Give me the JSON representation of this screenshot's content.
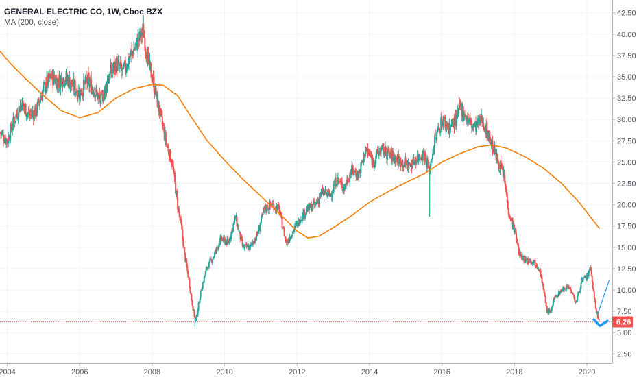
{
  "header": {
    "title": "GENERAL ELECTRIC CO, 1W, Cboe BZX",
    "indicator": "MA (200, close)"
  },
  "colors": {
    "up": "#26a69a",
    "down": "#ef5350",
    "ma": "#f57c00",
    "price_line": "#ef5350",
    "arrow": "#2196f3",
    "grid": "#f0f3fa"
  },
  "chart_data": {
    "type": "candlestick",
    "title": "GENERAL ELECTRIC CO, 1W, Cboe BZX",
    "interval": "1W",
    "xlim": [
      2003.8,
      2020.7
    ],
    "ylim": [
      1.4,
      44.0
    ],
    "x_ticks": [
      2004,
      2006,
      2008,
      2010,
      2012,
      2014,
      2016,
      2018,
      2020
    ],
    "x_tick_labels": [
      "2004",
      "2006",
      "2008",
      "2010",
      "2012",
      "2014",
      "2016",
      "2018",
      "2020"
    ],
    "y_ticks": [
      2.5,
      5.0,
      7.5,
      10.0,
      12.5,
      15.0,
      17.5,
      20.0,
      22.5,
      25.0,
      27.5,
      30.0,
      32.5,
      35.0,
      37.5,
      40.0,
      42.5
    ],
    "y_tick_labels": [
      "2.50",
      "5.00",
      "7.50",
      "10.00",
      "12.50",
      "15.00",
      "17.50",
      "20.00",
      "22.50",
      "25.00",
      "27.50",
      "30.00",
      "32.50",
      "35.00",
      "37.50",
      "40.00",
      "42.50"
    ],
    "last_price": 6.26,
    "last_price_label": "6.26",
    "price_path": [
      [
        2003.8,
        28.5
      ],
      [
        2004.0,
        27.5
      ],
      [
        2004.2,
        30.0
      ],
      [
        2004.4,
        32.0
      ],
      [
        2004.6,
        30.5
      ],
      [
        2004.8,
        31.0
      ],
      [
        2005.0,
        33.5
      ],
      [
        2005.2,
        35.0
      ],
      [
        2005.4,
        34.5
      ],
      [
        2005.6,
        35.0
      ],
      [
        2005.8,
        34.0
      ],
      [
        2006.0,
        33.0
      ],
      [
        2006.2,
        34.5
      ],
      [
        2006.4,
        33.5
      ],
      [
        2006.6,
        32.0
      ],
      [
        2006.8,
        35.0
      ],
      [
        2007.0,
        36.5
      ],
      [
        2007.2,
        35.5
      ],
      [
        2007.4,
        37.5
      ],
      [
        2007.6,
        39.0
      ],
      [
        2007.75,
        40.5
      ],
      [
        2007.9,
        36.5
      ],
      [
        2008.0,
        35.0
      ],
      [
        2008.1,
        33.0
      ],
      [
        2008.25,
        30.0
      ],
      [
        2008.4,
        27.0
      ],
      [
        2008.55,
        25.0
      ],
      [
        2008.7,
        20.0
      ],
      [
        2008.8,
        17.5
      ],
      [
        2008.9,
        14.0
      ],
      [
        2009.0,
        11.5
      ],
      [
        2009.1,
        8.5
      ],
      [
        2009.2,
        6.2
      ],
      [
        2009.35,
        10.0
      ],
      [
        2009.5,
        12.5
      ],
      [
        2009.7,
        14.0
      ],
      [
        2009.9,
        16.0
      ],
      [
        2010.1,
        15.5
      ],
      [
        2010.3,
        18.5
      ],
      [
        2010.5,
        15.0
      ],
      [
        2010.7,
        15.0
      ],
      [
        2010.9,
        16.5
      ],
      [
        2011.1,
        19.5
      ],
      [
        2011.3,
        20.0
      ],
      [
        2011.5,
        19.5
      ],
      [
        2011.7,
        15.5
      ],
      [
        2011.9,
        17.0
      ],
      [
        2012.1,
        18.5
      ],
      [
        2012.3,
        19.5
      ],
      [
        2012.5,
        20.0
      ],
      [
        2012.7,
        21.5
      ],
      [
        2012.9,
        21.0
      ],
      [
        2013.1,
        23.0
      ],
      [
        2013.3,
        22.0
      ],
      [
        2013.5,
        24.0
      ],
      [
        2013.7,
        23.5
      ],
      [
        2013.9,
        26.5
      ],
      [
        2014.1,
        25.0
      ],
      [
        2014.3,
        26.5
      ],
      [
        2014.5,
        26.0
      ],
      [
        2014.7,
        25.5
      ],
      [
        2014.9,
        25.0
      ],
      [
        2015.1,
        24.5
      ],
      [
        2015.3,
        25.5
      ],
      [
        2015.5,
        26.0
      ],
      [
        2015.65,
        24.0
      ],
      [
        2015.8,
        27.5
      ],
      [
        2016.0,
        30.0
      ],
      [
        2016.2,
        29.0
      ],
      [
        2016.4,
        30.0
      ],
      [
        2016.5,
        31.5
      ],
      [
        2016.7,
        30.0
      ],
      [
        2016.9,
        29.0
      ],
      [
        2017.1,
        30.0
      ],
      [
        2017.3,
        28.0
      ],
      [
        2017.5,
        25.5
      ],
      [
        2017.7,
        23.5
      ],
      [
        2017.85,
        19.0
      ],
      [
        2018.0,
        17.0
      ],
      [
        2018.15,
        14.0
      ],
      [
        2018.3,
        13.5
      ],
      [
        2018.5,
        13.5
      ],
      [
        2018.7,
        12.5
      ],
      [
        2018.8,
        10.0
      ],
      [
        2018.9,
        7.5
      ],
      [
        2019.0,
        7.5
      ],
      [
        2019.1,
        9.0
      ],
      [
        2019.3,
        10.0
      ],
      [
        2019.5,
        10.5
      ],
      [
        2019.7,
        8.5
      ],
      [
        2019.85,
        11.0
      ],
      [
        2020.0,
        11.5
      ],
      [
        2020.1,
        12.5
      ],
      [
        2020.15,
        11.0
      ],
      [
        2020.25,
        7.5
      ],
      [
        2020.35,
        6.26
      ]
    ],
    "spikes": [
      {
        "x": 2009.18,
        "low": 5.7
      },
      {
        "x": 2015.66,
        "low": 18.6
      }
    ],
    "ma_series": {
      "name": "MA (200, close)",
      "points": [
        [
          2003.8,
          38.0
        ],
        [
          2004.1,
          36.5
        ],
        [
          2004.5,
          34.8
        ],
        [
          2005.0,
          32.8
        ],
        [
          2005.5,
          31.0
        ],
        [
          2006.0,
          30.2
        ],
        [
          2006.5,
          30.8
        ],
        [
          2007.0,
          32.5
        ],
        [
          2007.5,
          33.6
        ],
        [
          2008.0,
          34.1
        ],
        [
          2008.3,
          34.0
        ],
        [
          2008.7,
          32.8
        ],
        [
          2009.0,
          30.8
        ],
        [
          2009.5,
          27.6
        ],
        [
          2010.0,
          25.2
        ],
        [
          2010.5,
          23.0
        ],
        [
          2011.0,
          21.0
        ],
        [
          2011.5,
          19.0
        ],
        [
          2012.0,
          16.9
        ],
        [
          2012.3,
          16.1
        ],
        [
          2012.6,
          16.3
        ],
        [
          2013.0,
          17.3
        ],
        [
          2013.5,
          18.7
        ],
        [
          2014.0,
          20.3
        ],
        [
          2014.5,
          21.5
        ],
        [
          2015.0,
          22.6
        ],
        [
          2015.5,
          23.6
        ],
        [
          2016.0,
          25.0
        ],
        [
          2016.5,
          26.0
        ],
        [
          2017.0,
          26.8
        ],
        [
          2017.4,
          27.0
        ],
        [
          2017.8,
          26.6
        ],
        [
          2018.3,
          25.6
        ],
        [
          2018.8,
          24.3
        ],
        [
          2019.3,
          22.5
        ],
        [
          2019.8,
          20.2
        ],
        [
          2020.2,
          18.0
        ],
        [
          2020.35,
          17.2
        ]
      ]
    },
    "annotations": {
      "forecast_line": [
        [
          2020.3,
          7.2
        ],
        [
          2020.62,
          11.2
        ]
      ],
      "arrow_tip": [
        2020.36,
        5.8
      ]
    }
  }
}
